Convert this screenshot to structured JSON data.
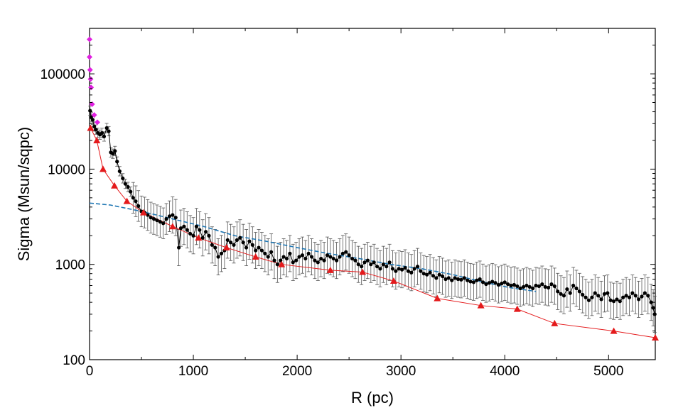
{
  "chart_data": {
    "type": "scatter",
    "title": "",
    "xlabel": "R (pc)",
    "ylabel": "Sigma (Msun/sqpc)",
    "xlim": [
      0,
      5450
    ],
    "ylim": [
      100,
      300000
    ],
    "yscale": "log",
    "grid": false,
    "legend": "none",
    "x_ticks": [
      0,
      1000,
      2000,
      3000,
      4000,
      5000
    ],
    "x_tick_labels": [
      "0",
      "1000",
      "2000",
      "3000",
      "4000",
      "5000"
    ],
    "y_ticks": [
      100,
      1000,
      10000,
      100000
    ],
    "y_tick_labels": [
      "100",
      "1000",
      "10000",
      "100000"
    ],
    "colors": {
      "black_series": "#000000",
      "error_bars": "#555555",
      "red_series": "#e41a1c",
      "magenta_series": "#e020e0",
      "blue_dashed": "#1f77b4"
    },
    "series": [
      {
        "marker": "diamond",
        "color": "#e020e0",
        "points": [
          [
            0,
            230000
          ],
          [
            0,
            150000
          ],
          [
            5,
            110000
          ],
          [
            10,
            88000
          ],
          [
            15,
            72000
          ],
          [
            25,
            48000
          ],
          [
            45,
            37000
          ],
          [
            75,
            31000
          ]
        ]
      },
      {
        "marker": "circle",
        "color": "#000000",
        "error_bars": true,
        "points": [
          [
            5,
            41000
          ],
          [
            15,
            35000
          ],
          [
            30,
            33000
          ],
          [
            45,
            28000
          ],
          [
            60,
            26000
          ],
          [
            80,
            24000
          ],
          [
            100,
            23000
          ],
          [
            120,
            24000
          ],
          [
            140,
            22000
          ],
          [
            165,
            27000
          ],
          [
            185,
            25000
          ],
          [
            205,
            15000
          ],
          [
            225,
            14500
          ],
          [
            245,
            15500
          ],
          [
            265,
            12000
          ],
          [
            290,
            9500
          ],
          [
            320,
            8000
          ],
          [
            345,
            7000
          ],
          [
            370,
            6500
          ],
          [
            395,
            5800
          ],
          [
            420,
            5000
          ],
          [
            445,
            4600
          ],
          [
            470,
            4100
          ],
          [
            500,
            3600
          ],
          [
            530,
            3500
          ],
          [
            560,
            3300
          ],
          [
            590,
            3100
          ],
          [
            620,
            3000
          ],
          [
            650,
            2900
          ],
          [
            680,
            2800
          ],
          [
            710,
            2700
          ],
          [
            740,
            3000
          ],
          [
            770,
            3200
          ],
          [
            800,
            3300
          ],
          [
            830,
            3100
          ],
          [
            860,
            1500
          ],
          [
            880,
            2400
          ],
          [
            910,
            2500
          ],
          [
            940,
            2300
          ],
          [
            970,
            2100
          ],
          [
            1000,
            2000
          ],
          [
            1030,
            2500
          ],
          [
            1060,
            2300
          ],
          [
            1090,
            1900
          ],
          [
            1120,
            2200
          ],
          [
            1150,
            2000
          ],
          [
            1180,
            1600
          ],
          [
            1210,
            1500
          ],
          [
            1240,
            1200
          ],
          [
            1270,
            1300
          ],
          [
            1300,
            1400
          ],
          [
            1330,
            1800
          ],
          [
            1360,
            1700
          ],
          [
            1390,
            1600
          ],
          [
            1420,
            1800
          ],
          [
            1450,
            1900
          ],
          [
            1480,
            1700
          ],
          [
            1510,
            1500
          ],
          [
            1540,
            1750
          ],
          [
            1570,
            1600
          ],
          [
            1600,
            1400
          ],
          [
            1630,
            1500
          ],
          [
            1660,
            1400
          ],
          [
            1690,
            1300
          ],
          [
            1720,
            1200
          ],
          [
            1750,
            1350
          ],
          [
            1780,
            1100
          ],
          [
            1810,
            1000
          ],
          [
            1840,
            1100
          ],
          [
            1870,
            1200
          ],
          [
            1900,
            1150
          ],
          [
            1930,
            1300
          ],
          [
            1960,
            1050
          ],
          [
            1990,
            1100
          ],
          [
            2020,
            1200
          ],
          [
            2050,
            1250
          ],
          [
            2080,
            1150
          ],
          [
            2110,
            1300
          ],
          [
            2140,
            1200
          ],
          [
            2170,
            1100
          ],
          [
            2200,
            1050
          ],
          [
            2230,
            1150
          ],
          [
            2260,
            1100
          ],
          [
            2290,
            1250
          ],
          [
            2320,
            1200
          ],
          [
            2350,
            1150
          ],
          [
            2380,
            1100
          ],
          [
            2410,
            1200
          ],
          [
            2440,
            1300
          ],
          [
            2470,
            1350
          ],
          [
            2500,
            1250
          ],
          [
            2530,
            1150
          ],
          [
            2560,
            1100
          ],
          [
            2590,
            1000
          ],
          [
            2620,
            950
          ],
          [
            2650,
            1050
          ],
          [
            2680,
            1100
          ],
          [
            2710,
            1000
          ],
          [
            2740,
            1050
          ],
          [
            2770,
            950
          ],
          [
            2800,
            900
          ],
          [
            2830,
            1000
          ],
          [
            2860,
            950
          ],
          [
            2890,
            1050
          ],
          [
            2920,
            900
          ],
          [
            2950,
            850
          ],
          [
            2980,
            900
          ],
          [
            3010,
            880
          ],
          [
            3040,
            920
          ],
          [
            3070,
            850
          ],
          [
            3100,
            820
          ],
          [
            3130,
            900
          ],
          [
            3160,
            950
          ],
          [
            3190,
            850
          ],
          [
            3220,
            800
          ],
          [
            3250,
            780
          ],
          [
            3280,
            820
          ],
          [
            3310,
            760
          ],
          [
            3340,
            720
          ],
          [
            3370,
            780
          ],
          [
            3400,
            750
          ],
          [
            3430,
            700
          ],
          [
            3460,
            720
          ],
          [
            3490,
            680
          ],
          [
            3520,
            720
          ],
          [
            3550,
            700
          ],
          [
            3580,
            690
          ],
          [
            3610,
            720
          ],
          [
            3640,
            680
          ],
          [
            3670,
            660
          ],
          [
            3700,
            650
          ],
          [
            3730,
            680
          ],
          [
            3760,
            700
          ],
          [
            3790,
            650
          ],
          [
            3820,
            620
          ],
          [
            3850,
            640
          ],
          [
            3880,
            660
          ],
          [
            3910,
            640
          ],
          [
            3940,
            610
          ],
          [
            3970,
            630
          ],
          [
            4000,
            650
          ],
          [
            4030,
            620
          ],
          [
            4060,
            600
          ],
          [
            4090,
            610
          ],
          [
            4120,
            590
          ],
          [
            4150,
            560
          ],
          [
            4180,
            580
          ],
          [
            4210,
            600
          ],
          [
            4240,
            580
          ],
          [
            4270,
            560
          ],
          [
            4300,
            600
          ],
          [
            4330,
            590
          ],
          [
            4360,
            620
          ],
          [
            4390,
            580
          ],
          [
            4420,
            570
          ],
          [
            4450,
            620
          ],
          [
            4480,
            590
          ],
          [
            4510,
            520
          ],
          [
            4540,
            490
          ],
          [
            4570,
            470
          ],
          [
            4600,
            550
          ],
          [
            4630,
            500
          ],
          [
            4660,
            600
          ],
          [
            4690,
            560
          ],
          [
            4720,
            520
          ],
          [
            4750,
            480
          ],
          [
            4780,
            450
          ],
          [
            4810,
            420
          ],
          [
            4840,
            450
          ],
          [
            4870,
            500
          ],
          [
            4900,
            470
          ],
          [
            4930,
            430
          ],
          [
            4960,
            490
          ],
          [
            4990,
            500
          ],
          [
            5020,
            420
          ],
          [
            5050,
            410
          ],
          [
            5080,
            430
          ],
          [
            5110,
            410
          ],
          [
            5140,
            450
          ],
          [
            5170,
            470
          ],
          [
            5200,
            450
          ],
          [
            5230,
            500
          ],
          [
            5260,
            470
          ],
          [
            5290,
            430
          ],
          [
            5320,
            460
          ],
          [
            5350,
            500
          ],
          [
            5380,
            470
          ],
          [
            5410,
            400
          ],
          [
            5430,
            350
          ],
          [
            5445,
            300
          ]
        ]
      },
      {
        "marker": "triangle",
        "color": "#e41a1c",
        "connected": true,
        "points": [
          [
            10,
            27000
          ],
          [
            70,
            20000
          ],
          [
            130,
            10000
          ],
          [
            240,
            6700
          ],
          [
            360,
            4600
          ],
          [
            520,
            3500
          ],
          [
            800,
            2500
          ],
          [
            1050,
            1900
          ],
          [
            1320,
            1500
          ],
          [
            1600,
            1200
          ],
          [
            1850,
            1000
          ],
          [
            2320,
            870
          ],
          [
            2630,
            830
          ],
          [
            2930,
            670
          ],
          [
            3350,
            440
          ],
          [
            3770,
            370
          ],
          [
            4120,
            340
          ],
          [
            4480,
            240
          ],
          [
            5050,
            200
          ],
          [
            5450,
            170
          ]
        ]
      },
      {
        "style": "dashed-line",
        "color": "#1f77b4",
        "points": [
          [
            0,
            4400
          ],
          [
            200,
            4200
          ],
          [
            500,
            3600
          ],
          [
            800,
            3000
          ],
          [
            1100,
            2500
          ],
          [
            1400,
            2000
          ],
          [
            1700,
            1750
          ],
          [
            2000,
            1500
          ],
          [
            2300,
            1300
          ],
          [
            2600,
            1150
          ],
          [
            2900,
            1000
          ],
          [
            3200,
            900
          ],
          [
            3500,
            780
          ],
          [
            3800,
            650
          ],
          [
            4050,
            570
          ],
          [
            4300,
            520
          ]
        ]
      }
    ]
  }
}
